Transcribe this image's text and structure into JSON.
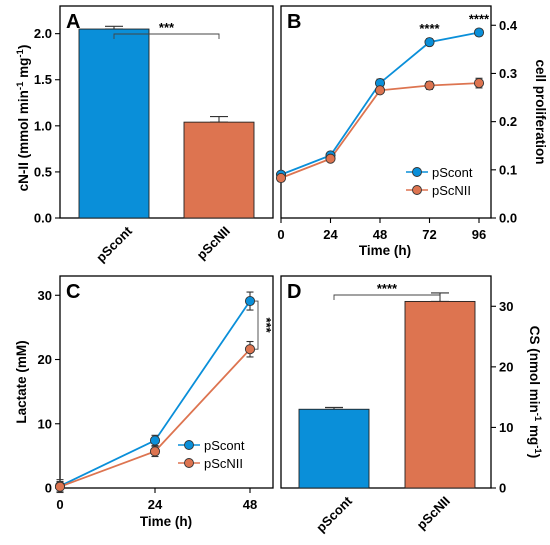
{
  "colors": {
    "pScont": "#0a8fd9",
    "pScNII": "#dd7450"
  },
  "chart_data": [
    {
      "id": "A",
      "type": "bar",
      "panel_label": "A",
      "categories": [
        "pScont",
        "pScNII"
      ],
      "values": [
        2.05,
        1.04
      ],
      "errors": [
        0.03,
        0.06
      ],
      "ylabel": "cN-II (mmol min-1 mg-1)",
      "ylabel_parts": {
        "base": "cN-II (mmol min",
        "e1": "-1",
        "mid": " mg",
        "e2": "-1",
        "end": ")"
      },
      "ylim": [
        0,
        2.3
      ],
      "yticks": [
        "0.0",
        "0.5",
        "1.0",
        "1.5",
        "2.0"
      ],
      "ytick_values": [
        0,
        0.5,
        1.0,
        1.5,
        2.0
      ],
      "significance": "***"
    },
    {
      "id": "B",
      "type": "line",
      "panel_label": "B",
      "x": [
        0,
        24,
        48,
        72,
        96
      ],
      "xticks": [
        "0",
        "24",
        "48",
        "72",
        "96"
      ],
      "xlabel": "Time (h)",
      "ylabel": "cell proliferation",
      "ylim": [
        0,
        0.44
      ],
      "yticks": [
        "0.0",
        "0.1",
        "0.2",
        "0.3",
        "0.4"
      ],
      "ytick_values": [
        0,
        0.1,
        0.2,
        0.3,
        0.4
      ],
      "series": [
        {
          "name": "pScont",
          "values": [
            0.09,
            0.13,
            0.28,
            0.365,
            0.385
          ],
          "errors": [
            0.005,
            0.005,
            0.008,
            0.007,
            0.006
          ]
        },
        {
          "name": "pScNII",
          "values": [
            0.083,
            0.123,
            0.265,
            0.275,
            0.28
          ],
          "errors": [
            0.005,
            0.005,
            0.006,
            0.008,
            0.01
          ]
        }
      ],
      "significance": [
        "****",
        "****"
      ],
      "legend": "bottom-right"
    },
    {
      "id": "C",
      "type": "line",
      "panel_label": "C",
      "x": [
        0,
        24,
        48
      ],
      "xticks": [
        "0",
        "24",
        "48"
      ],
      "xlabel": "Time (h)",
      "ylabel": "Lactate (mM)",
      "ylim": [
        0,
        33
      ],
      "yticks": [
        "0",
        "10",
        "20",
        "30"
      ],
      "ytick_values": [
        0,
        10,
        20,
        30
      ],
      "series": [
        {
          "name": "pScont",
          "values": [
            0.3,
            7.4,
            29.1
          ],
          "errors": [
            1.0,
            0.8,
            1.4
          ]
        },
        {
          "name": "pScNII",
          "values": [
            0.2,
            5.7,
            21.6
          ],
          "errors": [
            0.8,
            0.8,
            1.2
          ]
        }
      ],
      "significance": "***",
      "legend": "bottom-right"
    },
    {
      "id": "D",
      "type": "bar",
      "panel_label": "D",
      "categories": [
        "pScont",
        "pScNII"
      ],
      "values": [
        13.0,
        30.8
      ],
      "errors": [
        0.3,
        1.4
      ],
      "ylabel": "CS (nmol min-1 mg-1)",
      "ylabel_parts": {
        "base": "CS (nmol min",
        "e1": "-1",
        "mid": " mg",
        "e2": "-1",
        "end": ")"
      },
      "ylim": [
        0,
        35
      ],
      "yticks": [
        "0",
        "10",
        "20",
        "30"
      ],
      "ytick_values": [
        0,
        10,
        20,
        30
      ],
      "significance": "****"
    }
  ]
}
